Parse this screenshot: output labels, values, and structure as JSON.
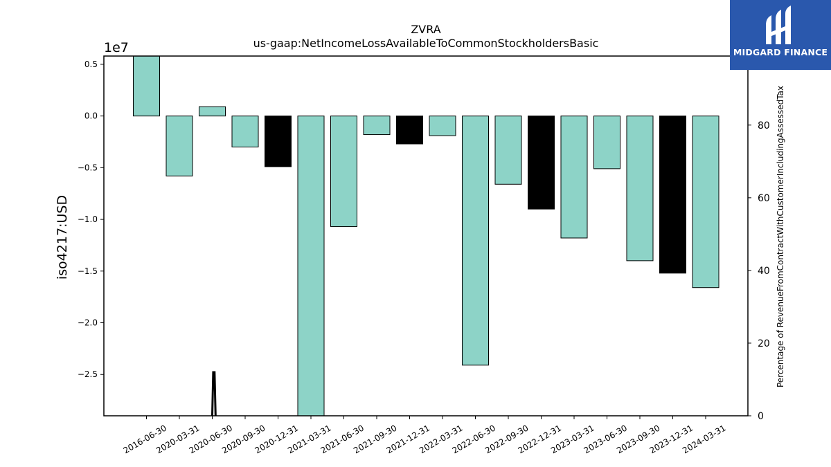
{
  "chart_data": {
    "type": "bar",
    "title": "ZVRA",
    "subtitle": "us-gaap:NetIncomeLossAvailableToCommonStockholdersBasic",
    "ylabel": "iso4217:USD",
    "y2label": "Percentage of RevenueFromContractWithCustomerIncludingAssessedTax",
    "y_offset_label": "1e7",
    "ylim": [
      -2.9,
      0.58
    ],
    "y2lim": [
      0,
      99
    ],
    "yticks": [
      "0.5",
      "0.0",
      "−0.5",
      "−1.0",
      "−1.5",
      "−2.0",
      "−2.5"
    ],
    "ytick_values": [
      0.5,
      0.0,
      -0.5,
      -1.0,
      -1.5,
      -2.0,
      -2.5
    ],
    "y2ticks": [
      "0",
      "20",
      "40",
      "60",
      "80"
    ],
    "y2tick_values": [
      0,
      20,
      40,
      60,
      80
    ],
    "categories": [
      "2016-06-30",
      "2020-03-31",
      "2020-06-30",
      "2020-09-30",
      "2020-12-31",
      "2021-03-31",
      "2021-06-30",
      "2021-09-30",
      "2021-12-31",
      "2022-03-31",
      "2022-06-30",
      "2022-09-30",
      "2022-12-31",
      "2023-03-31",
      "2023-06-30",
      "2023-09-30",
      "2023-12-31",
      "2024-03-31"
    ],
    "values": [
      0.59,
      -0.58,
      0.09,
      -0.3,
      -0.49,
      -2.95,
      -1.07,
      -0.18,
      -0.27,
      -0.19,
      -2.41,
      -0.66,
      -0.9,
      -1.18,
      -0.51,
      -1.4,
      -1.52,
      -1.66
    ],
    "bar_colors": [
      "#8dd3c7",
      "#8dd3c7",
      "#8dd3c7",
      "#8dd3c7",
      "#000000",
      "#8dd3c7",
      "#8dd3c7",
      "#8dd3c7",
      "#000000",
      "#8dd3c7",
      "#8dd3c7",
      "#8dd3c7",
      "#000000",
      "#8dd3c7",
      "#8dd3c7",
      "#8dd3c7",
      "#000000",
      "#8dd3c7"
    ],
    "line_series": {
      "x_positions": [
        2.0,
        2.03,
        2.07,
        2.1
      ],
      "values": [
        0,
        12,
        12,
        0
      ]
    },
    "colors": {
      "bar": "#8dd3c7",
      "q4_bar": "#000000",
      "line": "#000000"
    },
    "grid": false,
    "legend": "none"
  },
  "logo": {
    "text": "MIDGARD FINANCE",
    "bg": "#2a58ad"
  }
}
